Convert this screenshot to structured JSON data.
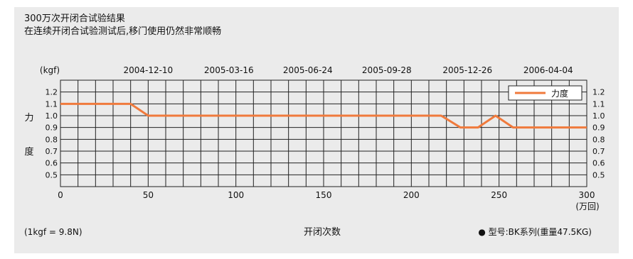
{
  "header": {
    "title": "300万次开闭合试验结果",
    "subtitle": "在连续开闭合试验测试后,移门使用仍然非常顺畅"
  },
  "footer": {
    "note": "(1kgf = 9.8N)",
    "xlabel": "开闭次数",
    "model": "● 型号:BK系列(重量47.5KG)"
  },
  "colors": {
    "line": "#f07a3c",
    "background": "#ebebeb",
    "grid": "#222222"
  },
  "chart_data": {
    "type": "line",
    "xunit": "(万回)",
    "yunit": "(kgf)",
    "ylabel": [
      "力",
      "度"
    ],
    "xlim": [
      0,
      300
    ],
    "xticks": [
      0,
      50,
      100,
      150,
      200,
      250,
      300
    ],
    "ylim": [
      0.4,
      1.3
    ],
    "yticks": [
      0.5,
      0.6,
      0.7,
      0.8,
      0.9,
      1.0,
      1.1,
      1.2
    ],
    "ytick_labels": [
      "0.5",
      "0.6",
      "0.7",
      "0.8",
      "0.9",
      "1.0",
      "1.1",
      "1.2"
    ],
    "date_ticks": [
      {
        "x": 50,
        "label": "2004-12-10"
      },
      {
        "x": 96,
        "label": "2005-03-16"
      },
      {
        "x": 141,
        "label": "2005-06-24"
      },
      {
        "x": 186,
        "label": "2005-09-28"
      },
      {
        "x": 232,
        "label": "2005-12-26"
      },
      {
        "x": 278,
        "label": "2006-04-04"
      }
    ],
    "legend_position": "top-right",
    "grid": true,
    "series": [
      {
        "name": "力度",
        "x": [
          0,
          40,
          50,
          217,
          228,
          238,
          248,
          258,
          300
        ],
        "y": [
          1.1,
          1.1,
          1.0,
          1.0,
          0.9,
          0.9,
          1.0,
          0.9,
          0.9
        ]
      }
    ]
  }
}
